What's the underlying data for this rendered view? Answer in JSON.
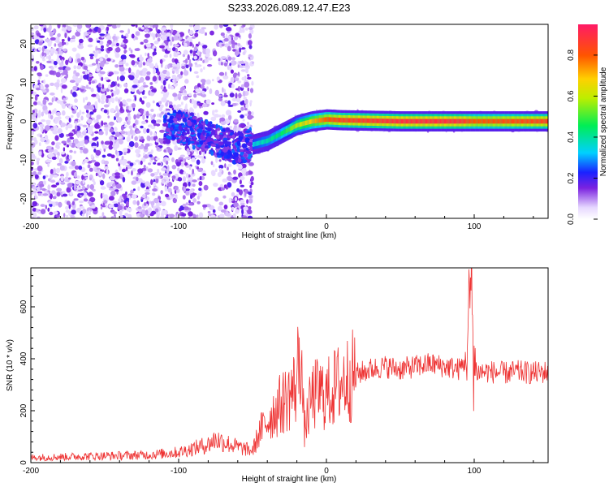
{
  "title": "S233.2026.089.12.47.E23",
  "chart_data": [
    {
      "type": "heatmap",
      "xlabel": "Height of straight line (km)",
      "ylabel": "Frequency (Hz)",
      "xlim": [
        -200,
        150
      ],
      "ylim": [
        -25,
        25
      ],
      "x_ticks": [
        "-200",
        "-100",
        "0",
        "100"
      ],
      "x_tick_values": [
        -200,
        -100,
        0,
        100
      ],
      "y_ticks": [
        "20",
        "10",
        "0",
        "-10",
        "-20"
      ],
      "y_tick_values": [
        20,
        10,
        0,
        -10,
        -20
      ],
      "colorbar": {
        "label": "Normalized spectral amplitude",
        "ticks": [
          "0.0",
          "0.2",
          "0.4",
          "0.6",
          "0.8"
        ],
        "tick_values": [
          0.0,
          0.2,
          0.4,
          0.6,
          0.8
        ],
        "range": [
          0,
          0.95
        ]
      },
      "ridge": {
        "x": [
          -100,
          -80,
          -60,
          -50,
          -40,
          -30,
          -20,
          -10,
          0,
          10,
          50,
          90,
          100,
          150
        ],
        "freq": [
          -1.5,
          -4,
          -7,
          -6,
          -5,
          -3,
          -1,
          0,
          0.5,
          0.3,
          0,
          0,
          0,
          0
        ],
        "amplitude": [
          0.2,
          0.3,
          0.25,
          0.35,
          0.4,
          0.45,
          0.6,
          0.7,
          0.8,
          0.85,
          0.9,
          0.9,
          0.8,
          0.85
        ]
      }
    },
    {
      "type": "line",
      "xlabel": "Height of straight line (km)",
      "ylabel": "SNR (10 * v/v)",
      "xlim": [
        -200,
        150
      ],
      "ylim": [
        0,
        750
      ],
      "x_ticks": [
        "-200",
        "-100",
        "0",
        "100"
      ],
      "x_tick_values": [
        -200,
        -100,
        0,
        100
      ],
      "y_ticks": [
        "0",
        "200",
        "400",
        "600"
      ],
      "y_tick_values": [
        0,
        200,
        400,
        600
      ],
      "color": "#ee3333",
      "series": [
        {
          "x": [
            -200,
            -180,
            -160,
            -140,
            -120,
            -100,
            -90,
            -80,
            -75,
            -70,
            -60,
            -50,
            -45,
            -40,
            -35,
            -30,
            -25,
            -20,
            -18,
            -15,
            -10,
            -5,
            0,
            10,
            20,
            30,
            40,
            50,
            60,
            70,
            80,
            90,
            95,
            98,
            100,
            102,
            110,
            120,
            130,
            140,
            150
          ],
          "y": [
            20,
            22,
            25,
            27,
            30,
            40,
            55,
            70,
            90,
            80,
            60,
            45,
            120,
            160,
            200,
            230,
            260,
            300,
            500,
            120,
            250,
            270,
            260,
            310,
            340,
            360,
            370,
            360,
            370,
            380,
            370,
            360,
            400,
            700,
            380,
            350,
            350,
            345,
            350,
            345,
            350
          ]
        }
      ]
    }
  ]
}
